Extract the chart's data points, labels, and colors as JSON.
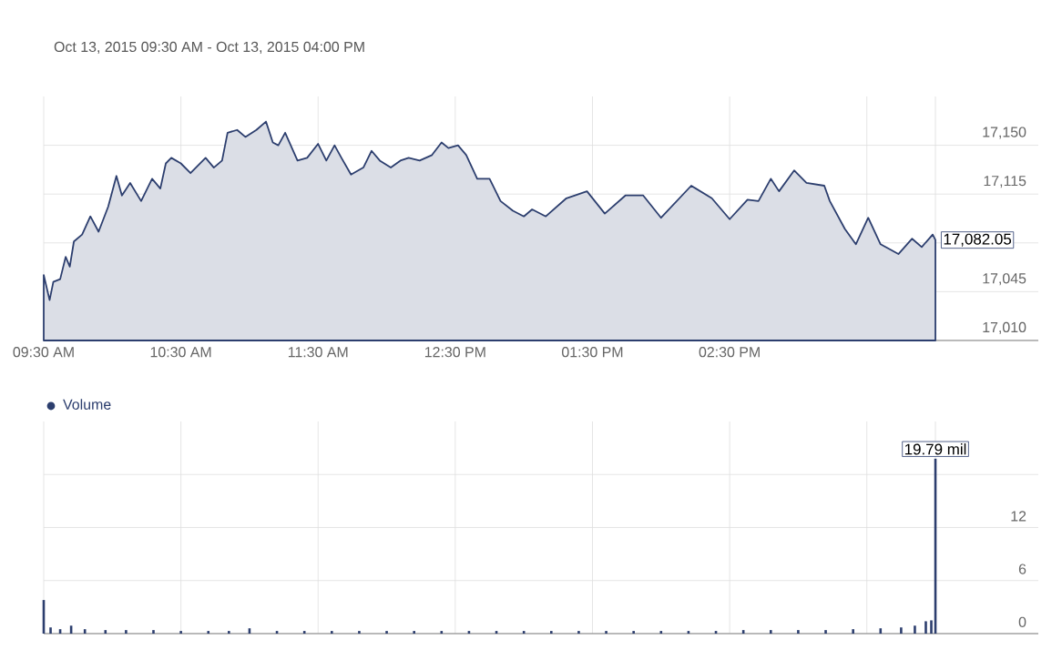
{
  "chart_data": [
    {
      "type": "area",
      "title": "Oct 13, 2015 09:30 AM - Oct 13, 2015 04:00 PM",
      "series": [
        {
          "color": "#2c3e6e",
          "x": [
            9.5,
            9.543,
            9.57,
            9.62,
            9.66,
            9.69,
            9.72,
            9.78,
            9.84,
            9.9,
            9.97,
            10.03,
            10.07,
            10.13,
            10.21,
            10.29,
            10.35,
            10.39,
            10.43,
            10.5,
            10.57,
            10.68,
            10.74,
            10.8,
            10.84,
            10.91,
            10.97,
            11.05,
            11.12,
            11.17,
            11.21,
            11.26,
            11.35,
            11.42,
            11.5,
            11.56,
            11.62,
            11.67,
            11.74,
            11.83,
            11.89,
            11.95,
            12.03,
            12.1,
            12.16,
            12.24,
            12.33,
            12.4,
            12.45,
            12.52,
            12.58,
            12.66,
            12.75,
            12.83,
            12.92,
            13.0,
            13.06,
            13.16,
            13.31,
            13.46,
            13.59,
            13.74,
            13.87,
            14.0,
            14.22,
            14.37,
            14.5,
            14.63,
            14.71,
            14.8,
            14.86,
            14.97,
            15.06,
            15.19,
            15.23,
            15.34,
            15.42,
            15.51,
            15.6,
            15.73,
            15.83,
            15.9,
            15.98,
            16.0
          ],
          "values": [
            17057,
            17039,
            17052,
            17054,
            17070,
            17063,
            17081,
            17086,
            17099,
            17088,
            17106,
            17128,
            17114,
            17123,
            17110,
            17126,
            17119,
            17137,
            17141,
            17137,
            17130,
            17141,
            17134,
            17139,
            17159,
            17161,
            17156,
            17161,
            17167,
            17152,
            17150,
            17159,
            17139,
            17141,
            17151,
            17139,
            17150,
            17141,
            17129,
            17134,
            17146,
            17139,
            17134,
            17139,
            17141,
            17139,
            17143,
            17152,
            17148,
            17150,
            17143,
            17126,
            17126,
            17110,
            17103,
            17099,
            17104,
            17099,
            17112,
            17117,
            17101,
            17114,
            17114,
            17098,
            17121,
            17112,
            17097,
            17111,
            17110,
            17126,
            17117,
            17132,
            17123,
            17121,
            17110,
            17090,
            17079,
            17098,
            17079,
            17072,
            17083,
            17077,
            17086,
            17082.05
          ]
        }
      ],
      "xlim": [
        9.5,
        16.75
      ],
      "ylim": [
        17010,
        17185
      ],
      "xticks": [
        {
          "value": 9.5,
          "label": "09:30 AM"
        },
        {
          "value": 10.5,
          "label": "10:30 AM"
        },
        {
          "value": 11.5,
          "label": "11:30 AM"
        },
        {
          "value": 12.5,
          "label": "12:30 PM"
        },
        {
          "value": 13.5,
          "label": "01:30 PM"
        },
        {
          "value": 14.5,
          "label": "02:30 PM"
        },
        {
          "value": 15.5,
          "label": null
        },
        {
          "value": 16.0,
          "label": null
        }
      ],
      "yticks": [
        {
          "value": 17010,
          "label": "17,010"
        },
        {
          "value": 17045,
          "label": "17,045"
        },
        {
          "value": 17080,
          "label": null
        },
        {
          "value": 17115,
          "label": "17,115"
        },
        {
          "value": 17150,
          "label": "17,150"
        }
      ],
      "annotations": [
        {
          "text": "17,082.05",
          "x": 16.0,
          "y": 17082.05
        }
      ],
      "grid": true
    },
    {
      "type": "bar",
      "legend": "top left",
      "series": [
        {
          "name": "Volume",
          "color": "#2c3e6e",
          "x": [
            9.5,
            9.55,
            9.62,
            9.7,
            9.8,
            9.95,
            10.1,
            10.3,
            10.5,
            10.7,
            10.85,
            11.0,
            11.2,
            11.4,
            11.6,
            11.8,
            12.0,
            12.2,
            12.4,
            12.6,
            12.8,
            13.0,
            13.2,
            13.4,
            13.6,
            13.8,
            14.0,
            14.2,
            14.4,
            14.6,
            14.8,
            15.0,
            15.2,
            15.4,
            15.6,
            15.75,
            15.85,
            15.93,
            15.97,
            16.0
          ],
          "values": [
            3.8,
            0.7,
            0.5,
            0.9,
            0.5,
            0.4,
            0.4,
            0.4,
            0.3,
            0.3,
            0.3,
            0.6,
            0.3,
            0.3,
            0.3,
            0.3,
            0.3,
            0.3,
            0.3,
            0.3,
            0.3,
            0.3,
            0.3,
            0.3,
            0.3,
            0.3,
            0.3,
            0.3,
            0.3,
            0.4,
            0.4,
            0.4,
            0.4,
            0.5,
            0.6,
            0.7,
            0.9,
            1.4,
            1.5,
            19.79
          ],
          "value_labels": [
            null,
            null,
            null,
            null,
            null,
            null,
            null,
            null,
            null,
            null,
            null,
            null,
            null,
            null,
            null,
            null,
            null,
            null,
            null,
            null,
            null,
            null,
            null,
            null,
            null,
            null,
            null,
            null,
            null,
            null,
            null,
            null,
            null,
            null,
            null,
            null,
            null,
            null,
            null,
            "19.79 mil"
          ]
        }
      ],
      "xlim": [
        9.5,
        16.75
      ],
      "ylim": [
        0,
        24
      ],
      "xticks": [
        {
          "value": 9.5,
          "label": null
        },
        {
          "value": 10.5,
          "label": null
        },
        {
          "value": 11.5,
          "label": null
        },
        {
          "value": 12.5,
          "label": null
        },
        {
          "value": 13.5,
          "label": null
        },
        {
          "value": 14.5,
          "label": null
        },
        {
          "value": 15.5,
          "label": null
        },
        {
          "value": 16.0,
          "label": null
        }
      ],
      "yticks": [
        0,
        6,
        12,
        {
          "value": 18,
          "label": null
        }
      ],
      "tick_labels": "y",
      "grid": true
    }
  ]
}
